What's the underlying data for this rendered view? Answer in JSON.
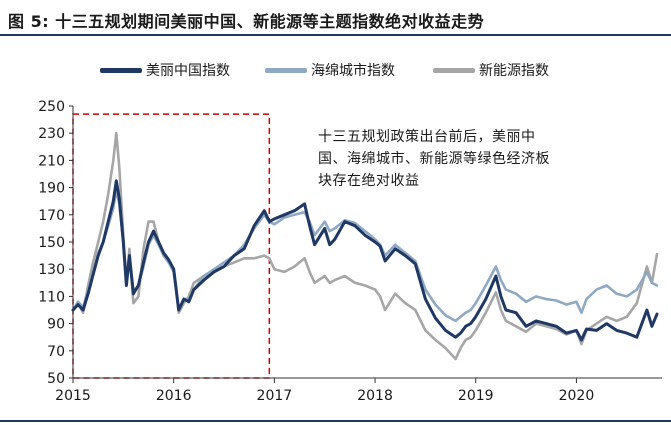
{
  "figure": {
    "title": "图 5: 十三五规划期间美丽中国、新能源等主题指数绝对收益走势",
    "annotation": "十三五规划政策出台前后，美丽中国、海绵城市、新能源等绿色经济板块存在绝对收益"
  },
  "chart_data": {
    "type": "line",
    "title": "图 5: 十三五规划期间美丽中国、新能源等主题指数绝对收益走势",
    "xlabel": "",
    "ylabel": "",
    "x_ticks": [
      "2015",
      "2016",
      "2017",
      "2018",
      "2019",
      "2020"
    ],
    "xlim": [
      2015.0,
      2020.85
    ],
    "ylim": [
      50,
      250
    ],
    "y_ticks": [
      50,
      70,
      90,
      110,
      130,
      150,
      170,
      190,
      210,
      230,
      250
    ],
    "grid": false,
    "legend_position": "top",
    "highlight_box": {
      "x_start": 2015.0,
      "x_end": 2016.95,
      "y_start": 50,
      "y_end": 244,
      "color": "#cc0000",
      "style": "dashed"
    },
    "series": [
      {
        "name": "美丽中国指数",
        "color": "#1f3864",
        "points": [
          [
            2015.0,
            100
          ],
          [
            2015.05,
            104
          ],
          [
            2015.1,
            100
          ],
          [
            2015.15,
            112
          ],
          [
            2015.2,
            126
          ],
          [
            2015.25,
            140
          ],
          [
            2015.3,
            150
          ],
          [
            2015.35,
            165
          ],
          [
            2015.4,
            180
          ],
          [
            2015.43,
            195
          ],
          [
            2015.46,
            182
          ],
          [
            2015.5,
            150
          ],
          [
            2015.53,
            118
          ],
          [
            2015.56,
            140
          ],
          [
            2015.6,
            112
          ],
          [
            2015.65,
            118
          ],
          [
            2015.7,
            135
          ],
          [
            2015.75,
            150
          ],
          [
            2015.8,
            158
          ],
          [
            2015.85,
            150
          ],
          [
            2015.9,
            142
          ],
          [
            2015.95,
            137
          ],
          [
            2016.0,
            130
          ],
          [
            2016.05,
            100
          ],
          [
            2016.1,
            108
          ],
          [
            2016.15,
            106
          ],
          [
            2016.2,
            115
          ],
          [
            2016.3,
            122
          ],
          [
            2016.4,
            128
          ],
          [
            2016.5,
            132
          ],
          [
            2016.6,
            140
          ],
          [
            2016.7,
            145
          ],
          [
            2016.8,
            162
          ],
          [
            2016.9,
            173
          ],
          [
            2016.95,
            165
          ],
          [
            2017.0,
            167
          ],
          [
            2017.1,
            170
          ],
          [
            2017.2,
            173
          ],
          [
            2017.3,
            178
          ],
          [
            2017.35,
            162
          ],
          [
            2017.4,
            148
          ],
          [
            2017.5,
            160
          ],
          [
            2017.55,
            148
          ],
          [
            2017.6,
            152
          ],
          [
            2017.7,
            165
          ],
          [
            2017.8,
            162
          ],
          [
            2017.9,
            155
          ],
          [
            2018.0,
            150
          ],
          [
            2018.05,
            147
          ],
          [
            2018.1,
            136
          ],
          [
            2018.2,
            145
          ],
          [
            2018.3,
            140
          ],
          [
            2018.4,
            134
          ],
          [
            2018.5,
            108
          ],
          [
            2018.6,
            94
          ],
          [
            2018.7,
            85
          ],
          [
            2018.8,
            80
          ],
          [
            2018.85,
            83
          ],
          [
            2018.9,
            88
          ],
          [
            2018.95,
            90
          ],
          [
            2019.0,
            95
          ],
          [
            2019.1,
            108
          ],
          [
            2019.2,
            125
          ],
          [
            2019.25,
            110
          ],
          [
            2019.3,
            100
          ],
          [
            2019.4,
            98
          ],
          [
            2019.5,
            88
          ],
          [
            2019.6,
            92
          ],
          [
            2019.7,
            90
          ],
          [
            2019.8,
            88
          ],
          [
            2019.9,
            83
          ],
          [
            2020.0,
            85
          ],
          [
            2020.05,
            78
          ],
          [
            2020.1,
            86
          ],
          [
            2020.2,
            85
          ],
          [
            2020.3,
            90
          ],
          [
            2020.4,
            85
          ],
          [
            2020.5,
            83
          ],
          [
            2020.6,
            80
          ],
          [
            2020.7,
            100
          ],
          [
            2020.75,
            88
          ],
          [
            2020.8,
            97
          ]
        ]
      },
      {
        "name": "海绵城市指数",
        "color": "#8ea9c1",
        "points": [
          [
            2015.0,
            100
          ],
          [
            2015.05,
            106
          ],
          [
            2015.1,
            102
          ],
          [
            2015.15,
            115
          ],
          [
            2015.2,
            128
          ],
          [
            2015.25,
            142
          ],
          [
            2015.3,
            150
          ],
          [
            2015.35,
            162
          ],
          [
            2015.4,
            175
          ],
          [
            2015.43,
            188
          ],
          [
            2015.46,
            178
          ],
          [
            2015.5,
            150
          ],
          [
            2015.53,
            120
          ],
          [
            2015.56,
            138
          ],
          [
            2015.6,
            114
          ],
          [
            2015.65,
            118
          ],
          [
            2015.7,
            132
          ],
          [
            2015.75,
            148
          ],
          [
            2015.8,
            155
          ],
          [
            2015.85,
            148
          ],
          [
            2015.9,
            140
          ],
          [
            2015.95,
            135
          ],
          [
            2016.0,
            128
          ],
          [
            2016.05,
            100
          ],
          [
            2016.1,
            108
          ],
          [
            2016.15,
            108
          ],
          [
            2016.2,
            115
          ],
          [
            2016.3,
            125
          ],
          [
            2016.4,
            130
          ],
          [
            2016.5,
            135
          ],
          [
            2016.6,
            140
          ],
          [
            2016.7,
            148
          ],
          [
            2016.8,
            160
          ],
          [
            2016.9,
            170
          ],
          [
            2016.95,
            165
          ],
          [
            2017.0,
            163
          ],
          [
            2017.1,
            168
          ],
          [
            2017.2,
            170
          ],
          [
            2017.3,
            172
          ],
          [
            2017.35,
            165
          ],
          [
            2017.4,
            155
          ],
          [
            2017.5,
            165
          ],
          [
            2017.55,
            158
          ],
          [
            2017.6,
            160
          ],
          [
            2017.7,
            166
          ],
          [
            2017.8,
            164
          ],
          [
            2017.9,
            158
          ],
          [
            2018.0,
            152
          ],
          [
            2018.05,
            148
          ],
          [
            2018.1,
            140
          ],
          [
            2018.2,
            148
          ],
          [
            2018.3,
            142
          ],
          [
            2018.4,
            136
          ],
          [
            2018.5,
            115
          ],
          [
            2018.6,
            104
          ],
          [
            2018.7,
            96
          ],
          [
            2018.8,
            92
          ],
          [
            2018.85,
            95
          ],
          [
            2018.9,
            98
          ],
          [
            2018.95,
            100
          ],
          [
            2019.0,
            105
          ],
          [
            2019.1,
            118
          ],
          [
            2019.2,
            132
          ],
          [
            2019.25,
            122
          ],
          [
            2019.3,
            115
          ],
          [
            2019.4,
            112
          ],
          [
            2019.5,
            106
          ],
          [
            2019.6,
            110
          ],
          [
            2019.7,
            108
          ],
          [
            2019.8,
            107
          ],
          [
            2019.9,
            104
          ],
          [
            2020.0,
            106
          ],
          [
            2020.05,
            98
          ],
          [
            2020.1,
            108
          ],
          [
            2020.2,
            115
          ],
          [
            2020.3,
            118
          ],
          [
            2020.4,
            112
          ],
          [
            2020.5,
            110
          ],
          [
            2020.6,
            115
          ],
          [
            2020.7,
            128
          ],
          [
            2020.75,
            120
          ],
          [
            2020.8,
            118
          ]
        ]
      },
      {
        "name": "新能源指数",
        "color": "#a6a6a6",
        "points": [
          [
            2015.0,
            100
          ],
          [
            2015.05,
            105
          ],
          [
            2015.1,
            98
          ],
          [
            2015.15,
            118
          ],
          [
            2015.2,
            135
          ],
          [
            2015.25,
            150
          ],
          [
            2015.3,
            165
          ],
          [
            2015.35,
            185
          ],
          [
            2015.4,
            210
          ],
          [
            2015.43,
            230
          ],
          [
            2015.46,
            205
          ],
          [
            2015.5,
            155
          ],
          [
            2015.53,
            120
          ],
          [
            2015.56,
            145
          ],
          [
            2015.6,
            105
          ],
          [
            2015.65,
            110
          ],
          [
            2015.7,
            145
          ],
          [
            2015.75,
            165
          ],
          [
            2015.8,
            165
          ],
          [
            2015.85,
            150
          ],
          [
            2015.9,
            140
          ],
          [
            2015.95,
            135
          ],
          [
            2016.0,
            130
          ],
          [
            2016.05,
            98
          ],
          [
            2016.1,
            105
          ],
          [
            2016.15,
            110
          ],
          [
            2016.2,
            120
          ],
          [
            2016.3,
            125
          ],
          [
            2016.4,
            128
          ],
          [
            2016.5,
            132
          ],
          [
            2016.6,
            135
          ],
          [
            2016.7,
            138
          ],
          [
            2016.8,
            138
          ],
          [
            2016.9,
            140
          ],
          [
            2016.95,
            138
          ],
          [
            2017.0,
            130
          ],
          [
            2017.1,
            128
          ],
          [
            2017.2,
            132
          ],
          [
            2017.3,
            138
          ],
          [
            2017.35,
            128
          ],
          [
            2017.4,
            120
          ],
          [
            2017.5,
            125
          ],
          [
            2017.55,
            120
          ],
          [
            2017.6,
            122
          ],
          [
            2017.7,
            125
          ],
          [
            2017.8,
            120
          ],
          [
            2017.9,
            118
          ],
          [
            2018.0,
            115
          ],
          [
            2018.05,
            110
          ],
          [
            2018.1,
            100
          ],
          [
            2018.2,
            112
          ],
          [
            2018.3,
            105
          ],
          [
            2018.4,
            100
          ],
          [
            2018.5,
            85
          ],
          [
            2018.6,
            78
          ],
          [
            2018.7,
            72
          ],
          [
            2018.8,
            64
          ],
          [
            2018.85,
            72
          ],
          [
            2018.9,
            78
          ],
          [
            2018.95,
            80
          ],
          [
            2019.0,
            85
          ],
          [
            2019.1,
            98
          ],
          [
            2019.2,
            113
          ],
          [
            2019.25,
            100
          ],
          [
            2019.3,
            92
          ],
          [
            2019.4,
            88
          ],
          [
            2019.5,
            84
          ],
          [
            2019.6,
            90
          ],
          [
            2019.7,
            88
          ],
          [
            2019.8,
            86
          ],
          [
            2019.9,
            82
          ],
          [
            2020.0,
            85
          ],
          [
            2020.05,
            75
          ],
          [
            2020.1,
            85
          ],
          [
            2020.2,
            90
          ],
          [
            2020.3,
            95
          ],
          [
            2020.4,
            92
          ],
          [
            2020.5,
            95
          ],
          [
            2020.6,
            105
          ],
          [
            2020.7,
            132
          ],
          [
            2020.75,
            120
          ],
          [
            2020.8,
            141
          ]
        ]
      }
    ]
  }
}
